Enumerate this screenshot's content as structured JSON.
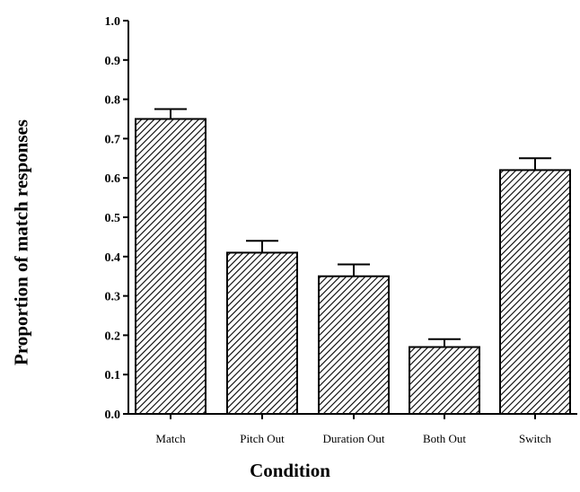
{
  "chart_data": {
    "type": "bar",
    "title": "",
    "xlabel": "Condition",
    "ylabel": "Proportion of match responses",
    "categories": [
      "Match",
      "Pitch Out",
      "Duration Out",
      "Both Out",
      "Switch"
    ],
    "series": [
      {
        "values": [
          0.75,
          0.41,
          0.35,
          0.17,
          0.62
        ],
        "error": [
          0.025,
          0.03,
          0.03,
          0.02,
          0.03
        ]
      }
    ],
    "ylim": [
      0,
      1.0
    ],
    "yticks": [
      "0.0",
      "0.1",
      "0.2",
      "0.3",
      "0.4",
      "0.5",
      "0.6",
      "0.7",
      "0.8",
      "0.9",
      "1.0"
    ],
    "grid": false,
    "bar_fill": "hatched",
    "colors": {
      "bar_stroke": "#000000",
      "hatch": "#000000",
      "background": "#ffffff"
    }
  }
}
